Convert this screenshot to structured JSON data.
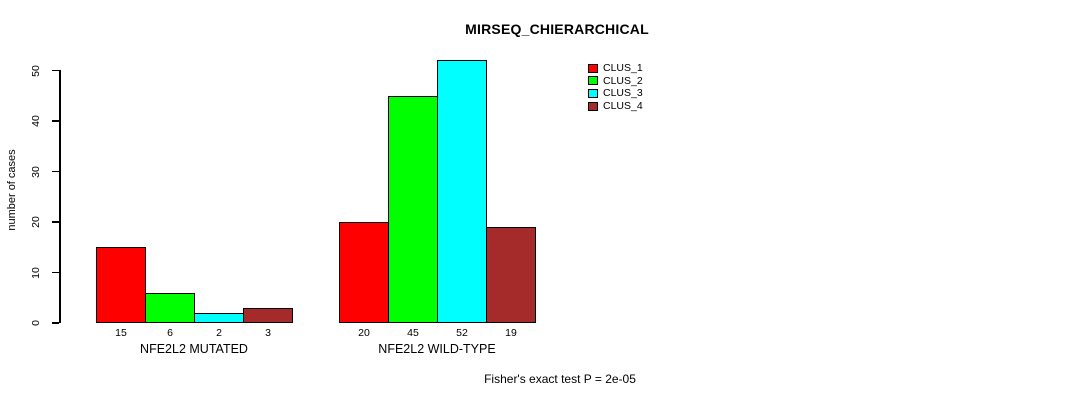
{
  "page": {
    "background": "#FFFFFF"
  },
  "header": {
    "title": "MIRSEQ_CHIERARCHICAL"
  },
  "y_axis": {
    "label": "number of cases"
  },
  "legend": {
    "items": [
      {
        "label": "CLUS_1",
        "color": "#FF0000"
      },
      {
        "label": "CLUS_2",
        "color": "#00FF00"
      },
      {
        "label": "CLUS_3",
        "color": "#00FFFF"
      },
      {
        "label": "CLUS_4",
        "color": "#A52A2A"
      }
    ]
  },
  "footer": {
    "text": "Fisher's exact test P = 2e-05"
  },
  "chart_data": {
    "type": "bar",
    "title": "MIRSEQ_CHIERARCHICAL",
    "categories": [
      "NFE2L2 MUTATED",
      "NFE2L2 WILD-TYPE"
    ],
    "series": [
      {
        "name": "CLUS_1",
        "color": "#FF0000",
        "values": [
          15,
          20
        ]
      },
      {
        "name": "CLUS_2",
        "color": "#00FF00",
        "values": [
          6,
          45
        ]
      },
      {
        "name": "CLUS_3",
        "color": "#00FFFF",
        "values": [
          2,
          52
        ]
      },
      {
        "name": "CLUS_4",
        "color": "#A52A2A",
        "values": [
          3,
          19
        ]
      }
    ],
    "xlabel": "",
    "ylabel": "number of cases",
    "ylim": [
      0,
      50
    ],
    "yticks": [
      0,
      10,
      20,
      30,
      40,
      50
    ],
    "grid": false,
    "bar_labels": true,
    "legend_position": "top-right",
    "annotation": "Fisher's exact test P = 2e-05"
  }
}
